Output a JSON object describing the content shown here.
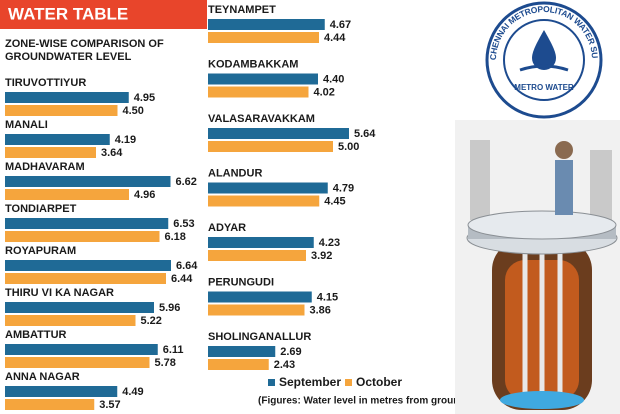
{
  "title": "WATER TABLE",
  "subtitle": [
    "ZONE-WISE COMPARISON OF",
    "GROUNDWATER LEVEL"
  ],
  "footnote": "(Figures: Water level in metres from ground level)",
  "logo": {
    "ring_text": "CHENNAI METROPOLITAN WATER SUPPLY AND SEWERAGE BOARD",
    "name": "METRO WATER"
  },
  "chart_data": {
    "type": "hbar",
    "categories": [
      "TIRUVOTTIYUR",
      "MANALI",
      "MADHAVARAM",
      "TONDIARPET",
      "ROYAPURAM",
      "THIRU VI KA NAGAR",
      "AMBATTUR",
      "ANNA NAGAR",
      "TEYNAMPET",
      "KODAMBAKKAM",
      "VALASARAVAKKAM",
      "ALANDUR",
      "ADYAR",
      "PERUNGUDI",
      "SHOLINGANALLUR"
    ],
    "series": [
      {
        "name": "September",
        "color": "#1f6a96",
        "values": [
          4.95,
          4.19,
          6.62,
          6.53,
          6.64,
          5.96,
          6.11,
          4.49,
          4.67,
          4.4,
          5.64,
          4.79,
          4.23,
          4.15,
          2.69
        ],
        "value_labels": [
          "4.95",
          "4.19",
          "6.62",
          "6.53",
          "6.64",
          "5.96",
          "6.11",
          "4.49",
          "4.67",
          "4.40",
          "5.64",
          "4.79",
          "4.23",
          "4.15",
          "2.69"
        ]
      },
      {
        "name": "October",
        "color": "#f5a53d",
        "values": [
          4.5,
          3.64,
          4.96,
          6.18,
          6.44,
          5.22,
          5.78,
          3.57,
          4.44,
          4.02,
          5.0,
          4.45,
          3.92,
          3.86,
          2.43
        ],
        "value_labels": [
          "4.50",
          "3.64",
          "4.96",
          "6.18",
          "6.44",
          "5.22",
          "5.78",
          "3.57",
          "4.44",
          "4.02",
          "5.00",
          "4.45",
          "3.92",
          "3.86",
          "2.43"
        ]
      }
    ]
  }
}
